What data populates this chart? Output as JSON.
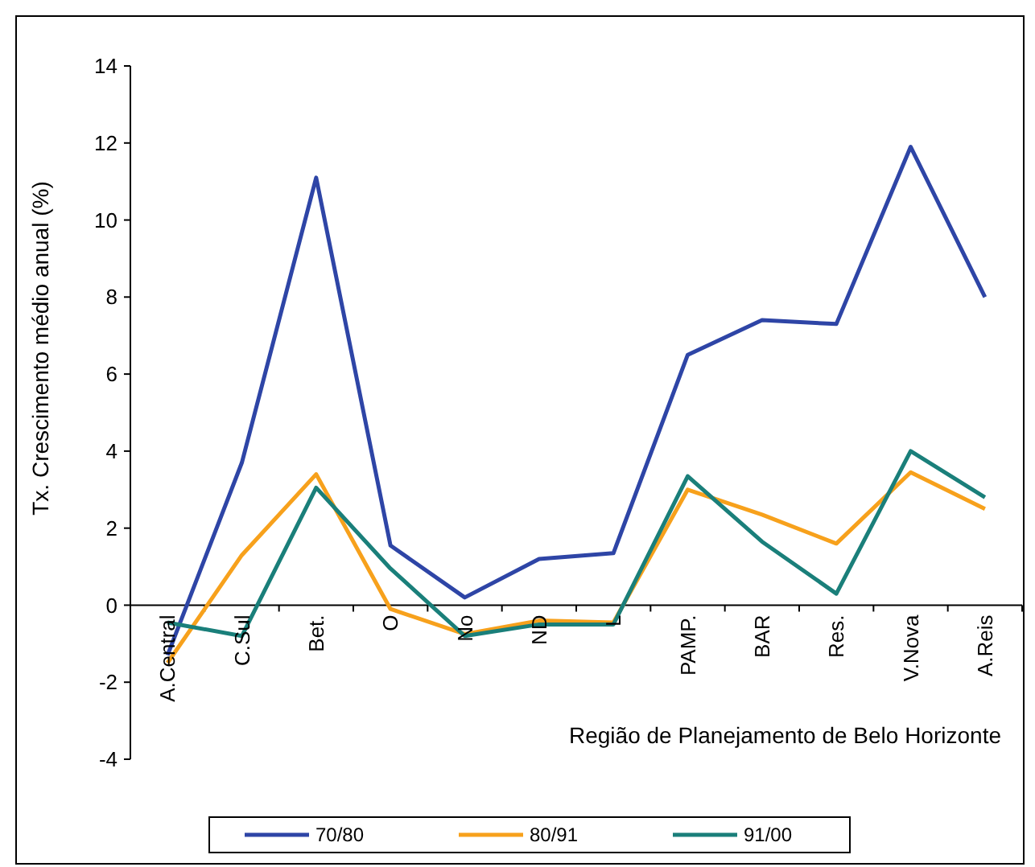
{
  "chart_data": {
    "type": "line",
    "xlabel": "Região de Planejamento de Belo Horizonte",
    "ylabel": "Tx. Crescimento médio anual (%)",
    "categories": [
      "A.Central",
      "C.Sul",
      "Bet.",
      "O",
      "No",
      "ND",
      "L",
      "PAMP.",
      "BAR",
      "Res.",
      "V.Nova",
      "A.Reis"
    ],
    "series": [
      {
        "name": "70/80",
        "color": "#2e45a6",
        "values": [
          -1.3,
          3.7,
          11.1,
          1.55,
          0.2,
          1.2,
          1.35,
          6.5,
          7.4,
          7.3,
          11.9,
          8.0
        ]
      },
      {
        "name": "80/91",
        "color": "#f7a11c",
        "values": [
          -1.5,
          1.3,
          3.4,
          -0.1,
          -0.75,
          -0.4,
          -0.45,
          3.0,
          2.35,
          1.6,
          3.45,
          2.5
        ]
      },
      {
        "name": "91/00",
        "color": "#1a7f7a",
        "values": [
          -0.45,
          -0.8,
          3.05,
          0.95,
          -0.8,
          -0.5,
          -0.5,
          3.35,
          1.65,
          0.3,
          4.0,
          2.8
        ]
      }
    ],
    "ylim": [
      -4,
      14
    ],
    "yticks": [
      -4,
      -2,
      0,
      2,
      4,
      6,
      8,
      10,
      12,
      14
    ],
    "legend": "bottom",
    "grid": false,
    "marker": "none",
    "line_style": "solid"
  }
}
